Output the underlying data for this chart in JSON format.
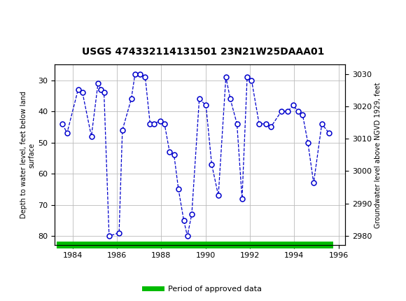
{
  "title": "USGS 474332114131501 23N21W25DAAA01",
  "ylabel_left": "Depth to water level, feet below land\nsurface",
  "ylabel_right": "Groundwater level above NGVD 1929, feet",
  "ylim_left": [
    83,
    25
  ],
  "ylim_right": [
    2977,
    3033
  ],
  "xlim": [
    1983.2,
    1996.3
  ],
  "xticks": [
    1984,
    1986,
    1988,
    1990,
    1992,
    1994,
    1996
  ],
  "yticks_left": [
    30,
    40,
    50,
    60,
    70,
    80
  ],
  "yticks_right": [
    2980,
    2990,
    3000,
    3010,
    3020,
    3030
  ],
  "data_x": [
    1983.55,
    1983.75,
    1984.25,
    1984.45,
    1984.85,
    1985.15,
    1985.28,
    1985.42,
    1985.65,
    1986.1,
    1986.25,
    1986.65,
    1986.82,
    1987.05,
    1987.28,
    1987.5,
    1987.68,
    1987.95,
    1988.15,
    1988.38,
    1988.58,
    1988.78,
    1989.02,
    1989.18,
    1989.38,
    1989.72,
    1990.02,
    1990.28,
    1990.58,
    1990.92,
    1991.12,
    1991.42,
    1991.65,
    1991.88,
    1992.08,
    1992.42,
    1992.72,
    1992.95,
    1993.42,
    1993.72,
    1993.95,
    1994.18,
    1994.38,
    1994.62,
    1994.88,
    1995.25,
    1995.58
  ],
  "data_y": [
    44,
    47,
    33,
    34,
    48,
    31,
    33,
    34,
    80,
    79,
    46,
    36,
    28,
    28,
    29,
    44,
    44,
    43,
    44,
    53,
    54,
    65,
    75,
    80,
    73,
    36,
    38,
    57,
    67,
    29,
    36,
    44,
    68,
    29,
    30,
    44,
    44,
    45,
    40,
    40,
    38,
    40,
    41,
    50,
    63,
    44,
    47
  ],
  "line_color": "#0000CC",
  "marker_color": "#0000CC",
  "marker_size": 5,
  "line_style": "--",
  "line_width": 0.9,
  "grid_color": "#BBBBBB",
  "bg_color": "#FFFFFF",
  "header_bg": "#006633",
  "approved_bar_color": "#00BB00",
  "approved_bar_x_start": 1983.3,
  "approved_bar_x_end": 1995.75,
  "legend_label": "Period of approved data"
}
